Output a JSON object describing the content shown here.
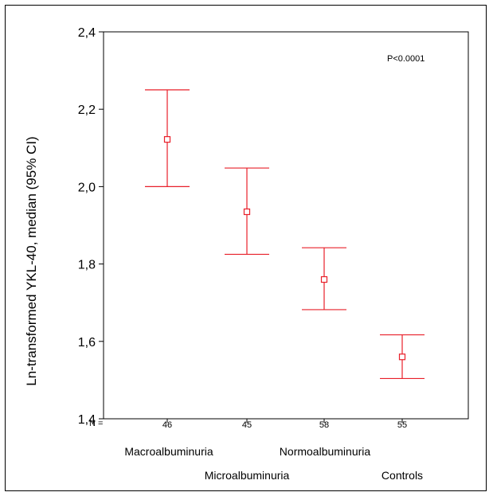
{
  "chart_data": {
    "type": "errorbar",
    "title": "",
    "xlabel": "",
    "ylabel": "Ln-transformed YKL-40, median (95% CI)",
    "annotation": "P<0.0001",
    "n_label": "N =",
    "ylim": [
      1.4,
      2.4
    ],
    "yticks": [
      1.4,
      1.6,
      1.8,
      2.0,
      2.2,
      2.4
    ],
    "ytick_labels": [
      "1,4",
      "1,6",
      "1,8",
      "2,0",
      "2,2",
      "2,4"
    ],
    "categories": [
      "Macroalbuminuria",
      "Microalbuminuria",
      "Normoalbuminuria",
      "Controls"
    ],
    "n_values": [
      "46",
      "45",
      "58",
      "55"
    ],
    "series": [
      {
        "median": [
          2.122,
          1.935,
          1.76,
          1.56
        ],
        "lower": [
          2.0,
          1.825,
          1.682,
          1.504
        ],
        "upper": [
          2.25,
          2.048,
          1.842,
          1.617
        ]
      }
    ],
    "color": "#e8202a",
    "grid": false
  }
}
